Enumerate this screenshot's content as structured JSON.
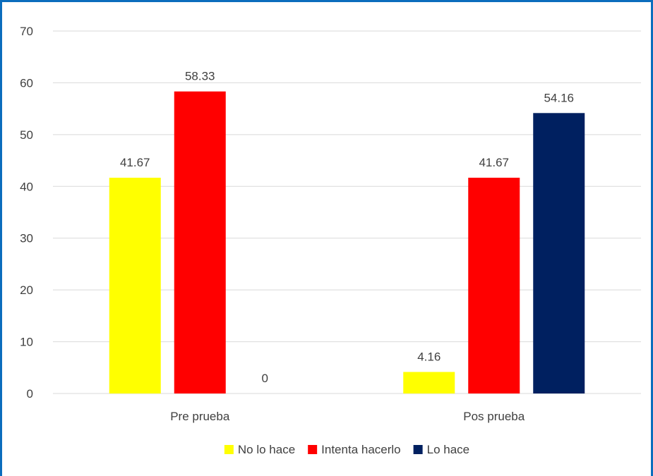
{
  "chart_data": {
    "type": "bar",
    "categories": [
      "Pre prueba",
      "Pos prueba"
    ],
    "series": [
      {
        "name": "No lo hace",
        "values": [
          41.67,
          4.16
        ],
        "color": "#ffff00"
      },
      {
        "name": "Intenta hacerlo",
        "values": [
          58.33,
          41.67
        ],
        "color": "#ff0000"
      },
      {
        "name": "Lo hace",
        "values": [
          0,
          54.16
        ],
        "color": "#002060"
      }
    ],
    "ylim": [
      0,
      70
    ],
    "yticks": [
      0,
      10,
      20,
      30,
      40,
      50,
      60,
      70
    ],
    "grid": true,
    "legend": "bottom",
    "title": "",
    "xlabel": "",
    "ylabel": ""
  },
  "colors": {
    "frame": "#0b6dbd",
    "grid": "#d9d9d9",
    "text": "#404040"
  }
}
